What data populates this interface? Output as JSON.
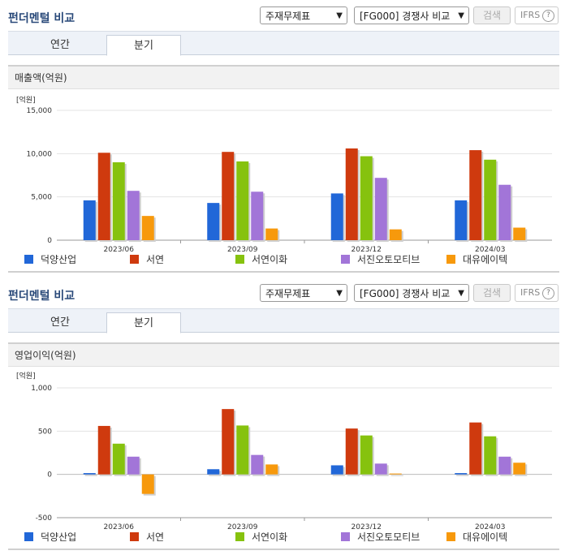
{
  "colors": {
    "덕양산업": "#2167d8",
    "서연": "#cf3a0e",
    "서연이화": "#86c20e",
    "서진오토모티브": "#a275d8",
    "대유에이텍": "#f7990c"
  },
  "panels": [
    {
      "title": "펀더멘털 비교",
      "select1": "주재무제표",
      "select2": "[FG000] 경쟁사 비교",
      "search_label": "검색",
      "ifrs_label": "IFRS",
      "help_icon": "?",
      "tabs": [
        "연간",
        "분기"
      ],
      "active_tab": 1,
      "section_title": "매출액(억원)",
      "chart_data": {
        "type": "bar",
        "unit_label": "[억원]",
        "categories": [
          "2023/06",
          "2023/09",
          "2023/12",
          "2024/03"
        ],
        "ylim": [
          0,
          15000
        ],
        "yticks": [
          0,
          5000,
          10000,
          15000
        ],
        "ytick_labels": [
          "0",
          "5,000",
          "10,000",
          "15,000"
        ],
        "grid": true,
        "legend_position": "bottom",
        "series": [
          {
            "name": "덕양산업",
            "values": [
              4600,
              4300,
              5400,
              4600
            ]
          },
          {
            "name": "서연",
            "values": [
              10100,
              10200,
              10600,
              10400
            ]
          },
          {
            "name": "서연이화",
            "values": [
              9000,
              9100,
              9700,
              9300
            ]
          },
          {
            "name": "서진오토모티브",
            "values": [
              5700,
              5600,
              7200,
              6400
            ]
          },
          {
            "name": "대유에이텍",
            "values": [
              2800,
              1350,
              1250,
              1450
            ]
          }
        ]
      }
    },
    {
      "title": "펀더멘털 비교",
      "select1": "주재무제표",
      "select2": "[FG000] 경쟁사 비교",
      "search_label": "검색",
      "ifrs_label": "IFRS",
      "help_icon": "?",
      "tabs": [
        "연간",
        "분기"
      ],
      "active_tab": 1,
      "section_title": "영업이익(억원)",
      "chart_data": {
        "type": "bar",
        "unit_label": "[억원]",
        "categories": [
          "2023/06",
          "2023/09",
          "2023/12",
          "2024/03"
        ],
        "ylim": [
          -500,
          1000
        ],
        "yticks": [
          -500,
          0,
          500,
          1000
        ],
        "ytick_labels": [
          "-500",
          "0",
          "500",
          "1,000"
        ],
        "grid": true,
        "legend_position": "bottom",
        "series": [
          {
            "name": "덕양산업",
            "values": [
              15,
              60,
              105,
              15
            ]
          },
          {
            "name": "서연",
            "values": [
              560,
              755,
              530,
              600
            ]
          },
          {
            "name": "서연이화",
            "values": [
              355,
              565,
              450,
              440
            ]
          },
          {
            "name": "서진오토모티브",
            "values": [
              205,
              225,
              125,
              205
            ]
          },
          {
            "name": "대유에이텍",
            "values": [
              -225,
              115,
              10,
              135
            ]
          }
        ]
      }
    }
  ]
}
